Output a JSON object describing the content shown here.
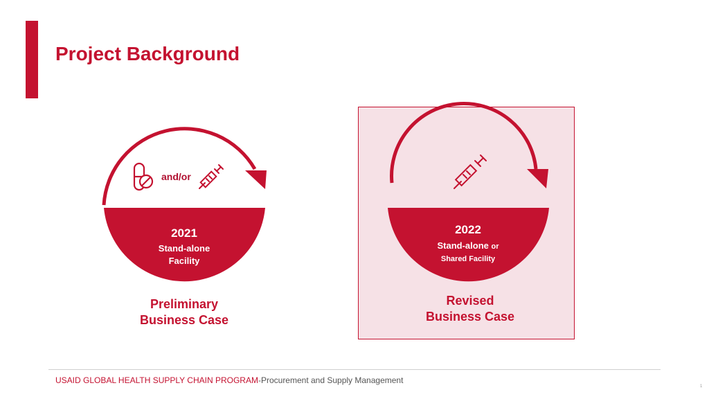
{
  "slide": {
    "title": "Project Background"
  },
  "left_panel": {
    "connector": "and/or",
    "icons": [
      "pill-icon",
      "syringe-icon"
    ],
    "year": "2021",
    "facility_line1": "Stand-alone",
    "facility_line2": "Facility",
    "case_line1": "Preliminary",
    "case_line2": "Business Case"
  },
  "right_panel": {
    "icons": [
      "syringe-icon"
    ],
    "year": "2022",
    "facility_line1": "Stand-alone",
    "facility_or": "or",
    "facility_line2": "Shared Facility",
    "case_line1": "Revised",
    "case_line2": "Business Case"
  },
  "footer": {
    "org": "USAID GLOBAL HEALTH SUPPLY CHAIN PROGRAM",
    "subtitle": "-Procurement and Supply Management",
    "page_number": "1"
  },
  "colors": {
    "accent": "#c41230",
    "highlight_bg": "#f6e1e6",
    "text": "#555555"
  }
}
